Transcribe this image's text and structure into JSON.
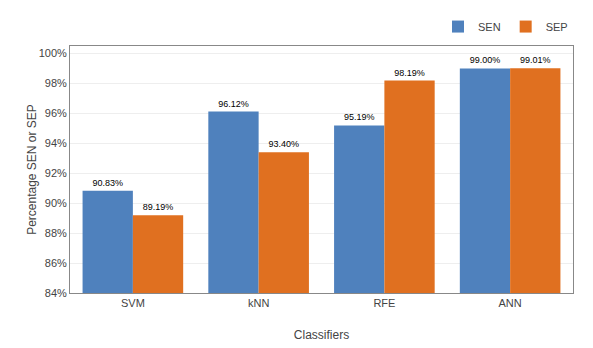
{
  "chart_data": {
    "type": "bar",
    "xlabel": "Classifiers",
    "ylabel": "Percentage SEN or SEP",
    "categories": [
      "SVM",
      "kNN",
      "RFE",
      "ANN"
    ],
    "series": [
      {
        "name": "SEN",
        "color": "#4F81BD",
        "values": [
          90.83,
          96.12,
          95.19,
          99.0
        ],
        "value_labels": [
          "90.83%",
          "96.12%",
          "95.19%",
          "99.00%"
        ]
      },
      {
        "name": "SEP",
        "color": "#E07020",
        "values": [
          89.19,
          93.4,
          98.19,
          99.01
        ],
        "value_labels": [
          "89.19%",
          "93.40%",
          "98.19%",
          "99.01%"
        ]
      }
    ],
    "ylim": [
      84,
      100.5
    ],
    "yticks": [
      {
        "value": 84,
        "label": "84%"
      },
      {
        "value": 86,
        "label": "86%"
      },
      {
        "value": 88,
        "label": "88%"
      },
      {
        "value": 90,
        "label": "90%"
      },
      {
        "value": 92,
        "label": "92%"
      },
      {
        "value": 94,
        "label": "94%"
      },
      {
        "value": 96,
        "label": "96%"
      },
      {
        "value": 98,
        "label": "98%"
      },
      {
        "value": 100,
        "label": "100%"
      }
    ],
    "grid": true,
    "legend": "upper right",
    "data_labels": true
  }
}
